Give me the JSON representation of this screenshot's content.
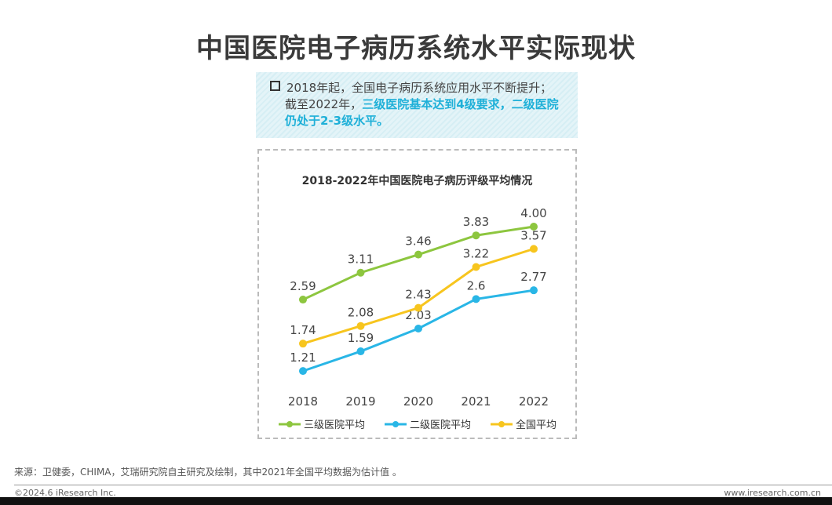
{
  "title": "中国医院电子病历系统水平实际现状",
  "callout": {
    "line1": "2018年起，全国电子病历系统应用水平不断提升；",
    "line2_plain": "截至2022年，",
    "line2_highlight": "三级医院基本达到4级要求，二级医院仍处于2-3级水平。"
  },
  "chart_data": {
    "type": "line",
    "title": "2018-2022年中国医院电子病历评级平均情况",
    "categories": [
      "2018",
      "2019",
      "2020",
      "2021",
      "2022"
    ],
    "series": [
      {
        "name": "三级医院平均",
        "color": "#8dc63f",
        "values": [
          2.59,
          3.11,
          3.46,
          3.83,
          4.0
        ],
        "labels": [
          "2.59",
          "3.11",
          "3.46",
          "3.83",
          "4.00"
        ]
      },
      {
        "name": "二级医院平均",
        "color": "#29b6e6",
        "values": [
          1.21,
          1.59,
          2.03,
          2.6,
          2.77
        ],
        "labels": [
          "1.21",
          "1.59",
          "2.03",
          "2.6",
          "2.77"
        ]
      },
      {
        "name": "全国平均",
        "color": "#f7c51e",
        "values": [
          1.74,
          2.08,
          2.43,
          3.22,
          3.57
        ],
        "labels": [
          "1.74",
          "2.08",
          "2.43",
          "3.22",
          "3.57"
        ]
      }
    ],
    "legend": "bottom",
    "grid": false
  },
  "footer": {
    "source": "来源：卫健委，CHIMA，艾瑞研究院自主研究及绘制，其中2021年全国平均数据为估计值 。",
    "copyright": "©2024.6 iResearch Inc.",
    "site": "www.iresearch.com.cn"
  }
}
